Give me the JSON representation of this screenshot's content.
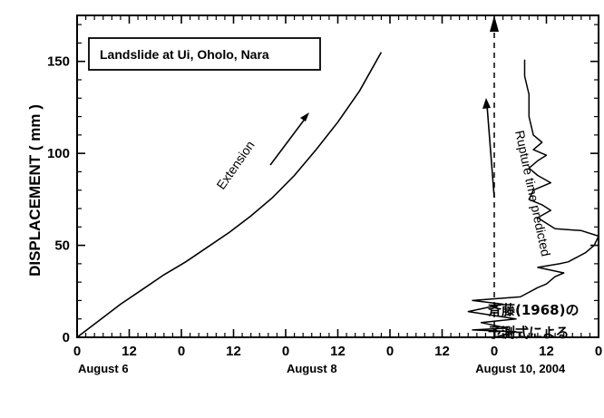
{
  "chart_data": {
    "type": "line",
    "title": "",
    "legend_box": "Landslide at Ui, Oholo, Nara",
    "ylabel": "DISPLACEMENT ( mm )",
    "xlabel": "",
    "ylim": [
      0,
      175
    ],
    "xlim": [
      0,
      120
    ],
    "y_ticks": [
      0,
      50,
      100,
      150
    ],
    "x_ticks": [
      {
        "x": 0,
        "label": "0"
      },
      {
        "x": 12,
        "label": "12"
      },
      {
        "x": 24,
        "label": "0"
      },
      {
        "x": 36,
        "label": "12"
      },
      {
        "x": 48,
        "label": "0"
      },
      {
        "x": 60,
        "label": "12"
      },
      {
        "x": 72,
        "label": "0"
      },
      {
        "x": 84,
        "label": "12"
      },
      {
        "x": 96,
        "label": "0"
      },
      {
        "x": 108,
        "label": "12"
      },
      {
        "x": 120,
        "label": "0"
      }
    ],
    "date_labels": [
      {
        "x": 6,
        "label": "August 6"
      },
      {
        "x": 54,
        "label": "August 8"
      },
      {
        "x": 102,
        "label": "August 10,  2004"
      }
    ],
    "x_units": "hours from 0:00 August 6, 2004",
    "grid": false,
    "series": [
      {
        "name": "Extension",
        "axis": "bottom",
        "points": [
          [
            0,
            0
          ],
          [
            5,
            9
          ],
          [
            10,
            18
          ],
          [
            15,
            26
          ],
          [
            20,
            34
          ],
          [
            25,
            41
          ],
          [
            30,
            49
          ],
          [
            35,
            57
          ],
          [
            40,
            66
          ],
          [
            45,
            76
          ],
          [
            50,
            88
          ],
          [
            55,
            102
          ],
          [
            60,
            117
          ],
          [
            65,
            134
          ],
          [
            70,
            155
          ]
        ]
      },
      {
        "name": "Rupture time predicted",
        "axis": "right",
        "points": [
          [
            0,
            0
          ],
          [
            5,
            3
          ],
          [
            -5,
            4
          ],
          [
            3,
            5
          ],
          [
            -3,
            8
          ],
          [
            5,
            10
          ],
          [
            -6,
            14
          ],
          [
            2,
            18
          ],
          [
            -5,
            20
          ],
          [
            6,
            22
          ],
          [
            10,
            27
          ],
          [
            12,
            29
          ],
          [
            14,
            33
          ],
          [
            16,
            35
          ],
          [
            10,
            38
          ],
          [
            15,
            40
          ],
          [
            17,
            41
          ],
          [
            21,
            46
          ],
          [
            23,
            50
          ],
          [
            24,
            55
          ],
          [
            20,
            58
          ],
          [
            14,
            59
          ],
          [
            12,
            62
          ],
          [
            10,
            65
          ],
          [
            13,
            69
          ],
          [
            11,
            72
          ],
          [
            8,
            75
          ],
          [
            9,
            80
          ],
          [
            13,
            84
          ],
          [
            10,
            88
          ],
          [
            8,
            92
          ],
          [
            10,
            96
          ],
          [
            12,
            99
          ],
          [
            9,
            102
          ],
          [
            11,
            106
          ],
          [
            9,
            110
          ],
          [
            8,
            120
          ],
          [
            8,
            132
          ],
          [
            7,
            142
          ],
          [
            7,
            151
          ]
        ]
      }
    ],
    "rupture_time_x": 96
  },
  "annotations": {
    "extension": "Extension",
    "rupture": "Rupture time predicted",
    "japanese_line1": "斉藤(1968)の",
    "japanese_line2": "予測式による"
  }
}
